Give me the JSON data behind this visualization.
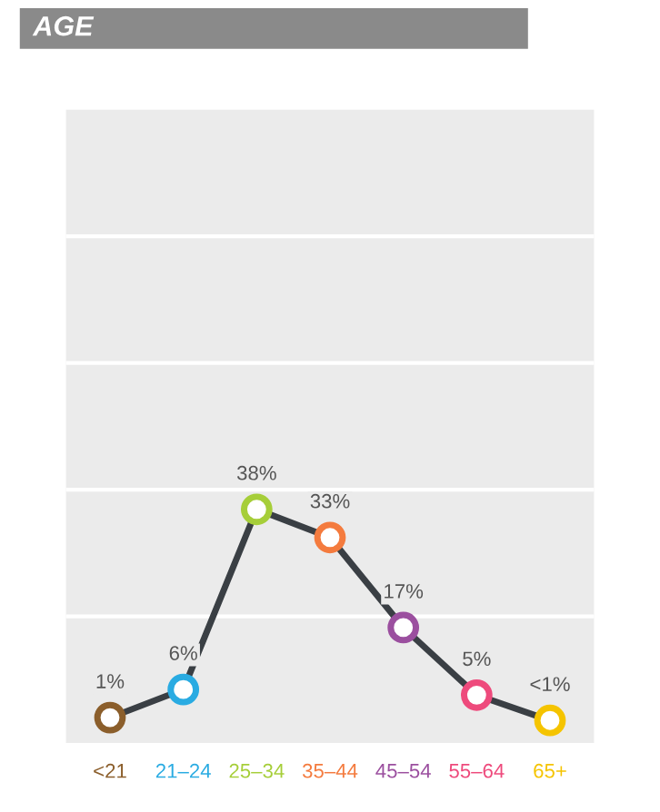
{
  "chart_data": {
    "type": "line",
    "title": "AGE",
    "categories": [
      "<21",
      "21–24",
      "25–34",
      "35–44",
      "45–54",
      "55–64",
      "65+"
    ],
    "values": [
      1,
      6,
      38,
      33,
      17,
      5,
      0.5
    ],
    "value_labels": [
      "1%",
      "6%",
      "38%",
      "33%",
      "17%",
      "5%",
      "<1%"
    ],
    "color": "#3a3f44",
    "colors": [
      "#8b5e2b",
      "#29abe2",
      "#a6ce39",
      "#f47b3e",
      "#9b4f9f",
      "#ee4a7c",
      "#f5c400"
    ],
    "marker": "circle",
    "line_style": "solid",
    "ylim": [
      -3.5,
      109
    ],
    "yticks": [
      {
        "value": 19,
        "label": null
      },
      {
        "value": 41.5,
        "label": null
      },
      {
        "value": 64,
        "label": null
      },
      {
        "value": 86.5,
        "label": null
      }
    ],
    "grid": "y",
    "legend": false
  }
}
